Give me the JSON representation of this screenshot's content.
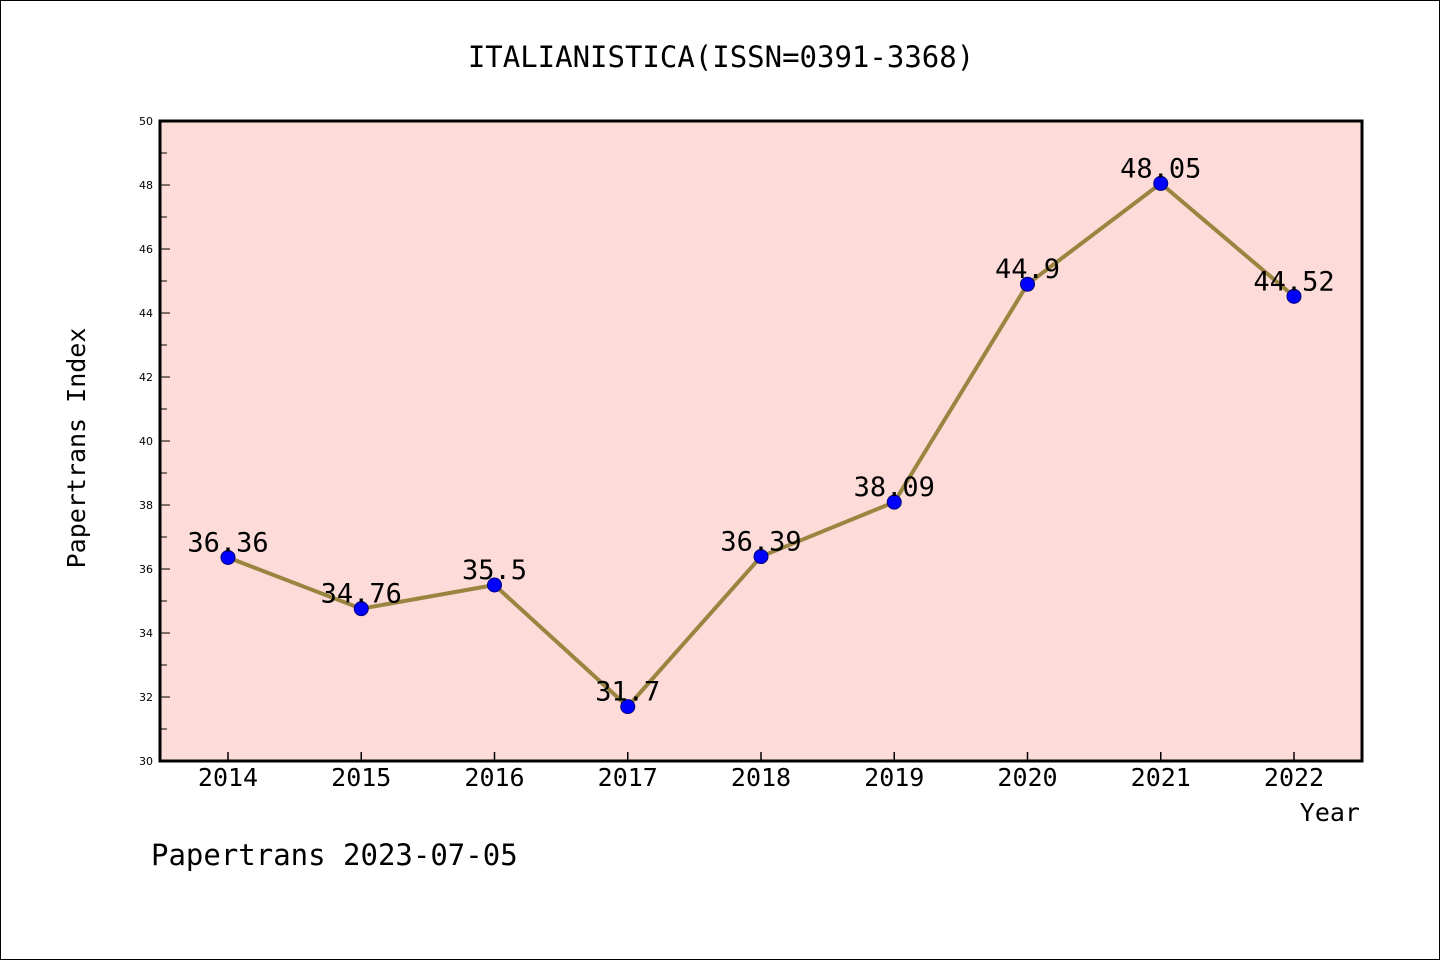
{
  "chart_data": {
    "type": "line",
    "title": "ITALIANISTICA(ISSN=0391-3368)",
    "xlabel": "Year",
    "ylabel": "Papertrans Index",
    "footer": "Papertrans 2023-07-05",
    "categories": [
      "2014",
      "2015",
      "2016",
      "2017",
      "2018",
      "2019",
      "2020",
      "2021",
      "2022"
    ],
    "series": [
      {
        "values": [
          36.36,
          34.76,
          35.5,
          31.7,
          36.39,
          38.09,
          44.9,
          48.05,
          44.52
        ],
        "labels": [
          "36.36",
          "34.76",
          "35.5",
          "31.7",
          "36.39",
          "38.09",
          "44.9",
          "48.05",
          "44.52"
        ]
      }
    ],
    "ylim": [
      30,
      50
    ],
    "yticks": [
      "30",
      "32",
      "34",
      "36",
      "38",
      "40",
      "42",
      "44",
      "46",
      "48",
      "50"
    ],
    "grid": false,
    "legend": "none",
    "colors": {
      "plot_background": "#fddbd8",
      "line": "#9a8540",
      "marker": "#0000ff",
      "axis": "#000000"
    }
  }
}
